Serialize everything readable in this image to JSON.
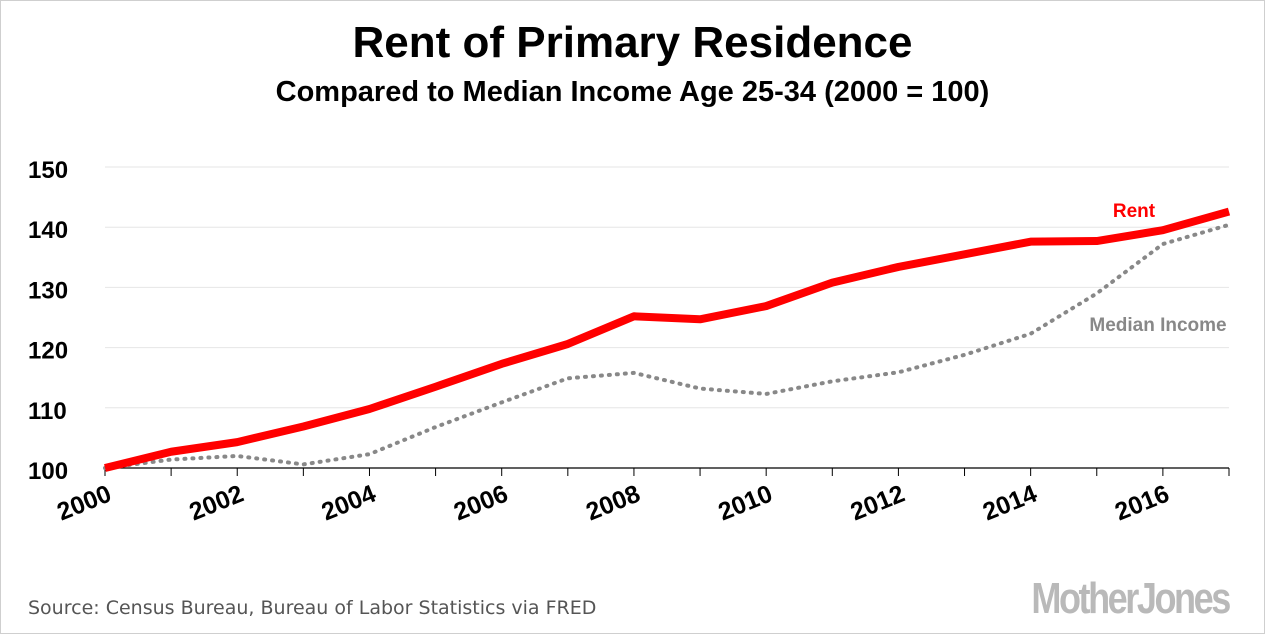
{
  "header": {
    "title": "Rent of Primary Residence",
    "subtitle": "Compared to Median Income Age 25-34 (2000 = 100)"
  },
  "footer": {
    "source": "Source: Census Bureau, Bureau of Labor Statistics via FRED",
    "logo": "MotherJones"
  },
  "chart_data": {
    "type": "line",
    "title": "Rent of Primary Residence",
    "subtitle": "Compared to Median Income Age 25-34 (2000 = 100)",
    "x": [
      2000,
      2001,
      2002,
      2003,
      2004,
      2005,
      2006,
      2007,
      2008,
      2009,
      2010,
      2011,
      2012,
      2013,
      2014,
      2015,
      2016,
      2017
    ],
    "xlim": [
      2000,
      2017
    ],
    "ylim": [
      100,
      150
    ],
    "x_ticks": [
      "2000",
      "2002",
      "2004",
      "2006",
      "2008",
      "2010",
      "2012",
      "2014",
      "2016"
    ],
    "y_ticks": [
      "100",
      "110",
      "120",
      "130",
      "140",
      "150"
    ],
    "grid": "horizontal",
    "series": [
      {
        "name": "Rent",
        "color": "#ff0000",
        "style": "solid",
        "values": [
          100.0,
          102.7,
          104.3,
          106.9,
          109.8,
          113.5,
          117.3,
          120.6,
          125.2,
          124.7,
          126.9,
          130.8,
          133.4,
          135.5,
          137.6,
          137.7,
          139.5,
          142.6
        ]
      },
      {
        "name": "Median Income",
        "color": "#888888",
        "style": "dotted",
        "values": [
          100.0,
          101.4,
          102.0,
          100.6,
          102.3,
          106.8,
          110.9,
          114.9,
          115.8,
          113.2,
          112.3,
          114.4,
          115.9,
          118.8,
          122.3,
          129.0,
          137.2,
          140.4
        ]
      }
    ]
  }
}
